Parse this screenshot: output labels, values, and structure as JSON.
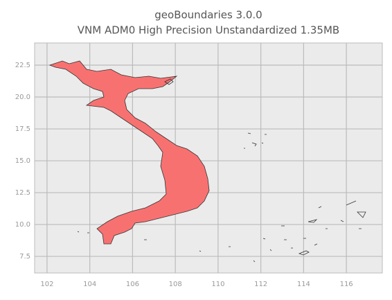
{
  "chart_data": {
    "type": "map",
    "title": "geoBoundaries 3.0.0",
    "subtitle": "VNM ADM0 High Precision Unstandardized 1.35MB",
    "xlim": [
      101.42,
      117.68
    ],
    "ylim": [
      6.2,
      24.24
    ],
    "xticks": [
      102,
      104,
      106,
      108,
      110,
      112,
      114,
      116
    ],
    "yticks": [
      7.5,
      {
        "value": 10,
        "label": "10.0"
      },
      12.5,
      {
        "value": 15,
        "label": "15.0"
      },
      17.5,
      {
        "value": 20,
        "label": "20.0"
      },
      22.5
    ],
    "grid": true,
    "color": "#f87171"
  }
}
